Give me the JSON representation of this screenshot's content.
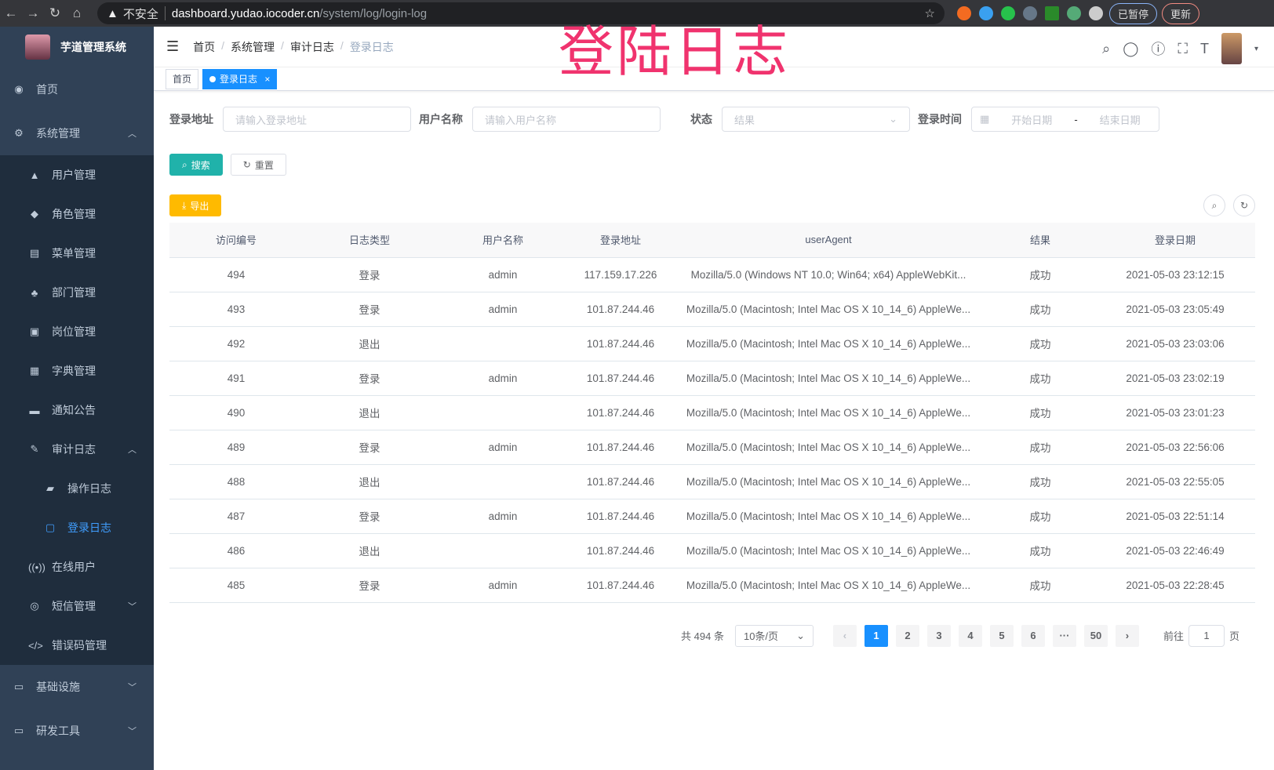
{
  "browser": {
    "security": "不安全",
    "host": "dashboard.yudao.iocoder.cn",
    "path": "/system/log/login-log",
    "paused": "已暂停",
    "update": "更新"
  },
  "overlay_title": "登陆日志",
  "sidebar": {
    "app_name": "芋道管理系统",
    "items": [
      {
        "label": "首页",
        "icon": "dashboard-icon"
      },
      {
        "label": "系统管理",
        "icon": "gear-icon",
        "expanded": true,
        "children": [
          {
            "label": "用户管理",
            "icon": "user-icon"
          },
          {
            "label": "角色管理",
            "icon": "peoples-icon"
          },
          {
            "label": "菜单管理",
            "icon": "tree-table-icon"
          },
          {
            "label": "部门管理",
            "icon": "tree-icon"
          },
          {
            "label": "岗位管理",
            "icon": "post-icon"
          },
          {
            "label": "字典管理",
            "icon": "dict-icon"
          },
          {
            "label": "通知公告",
            "icon": "message-icon"
          },
          {
            "label": "审计日志",
            "icon": "log-icon",
            "expanded": true,
            "children": [
              {
                "label": "操作日志",
                "icon": "form-icon"
              },
              {
                "label": "登录日志",
                "icon": "logininfor-icon",
                "active": true
              }
            ]
          },
          {
            "label": "在线用户",
            "icon": "online-icon"
          },
          {
            "label": "短信管理",
            "icon": "shield-icon"
          },
          {
            "label": "错误码管理",
            "icon": "code-icon"
          }
        ]
      },
      {
        "label": "基础设施",
        "icon": "monitor-icon"
      },
      {
        "label": "研发工具",
        "icon": "tool-icon"
      }
    ]
  },
  "breadcrumb": [
    "首页",
    "系统管理",
    "审计日志",
    "登录日志"
  ],
  "tags": [
    {
      "label": "首页"
    },
    {
      "label": "登录日志",
      "active": true
    }
  ],
  "filters": {
    "address_label": "登录地址",
    "address_placeholder": "请输入登录地址",
    "username_label": "用户名称",
    "username_placeholder": "请输入用户名称",
    "status_label": "状态",
    "status_placeholder": "结果",
    "time_label": "登录时间",
    "start_placeholder": "开始日期",
    "range_sep": "-",
    "end_placeholder": "结束日期"
  },
  "buttons": {
    "search": "搜索",
    "reset": "重置",
    "export": "导出"
  },
  "table": {
    "columns": [
      "访问编号",
      "日志类型",
      "用户名称",
      "登录地址",
      "userAgent",
      "结果",
      "登录日期"
    ],
    "rows": [
      [
        "494",
        "登录",
        "admin",
        "117.159.17.226",
        "Mozilla/5.0 (Windows NT 10.0; Win64; x64) AppleWebKit...",
        "成功",
        "2021-05-03 23:12:15"
      ],
      [
        "493",
        "登录",
        "admin",
        "101.87.244.46",
        "Mozilla/5.0 (Macintosh; Intel Mac OS X 10_14_6) AppleWe...",
        "成功",
        "2021-05-03 23:05:49"
      ],
      [
        "492",
        "退出",
        "",
        "101.87.244.46",
        "Mozilla/5.0 (Macintosh; Intel Mac OS X 10_14_6) AppleWe...",
        "成功",
        "2021-05-03 23:03:06"
      ],
      [
        "491",
        "登录",
        "admin",
        "101.87.244.46",
        "Mozilla/5.0 (Macintosh; Intel Mac OS X 10_14_6) AppleWe...",
        "成功",
        "2021-05-03 23:02:19"
      ],
      [
        "490",
        "退出",
        "",
        "101.87.244.46",
        "Mozilla/5.0 (Macintosh; Intel Mac OS X 10_14_6) AppleWe...",
        "成功",
        "2021-05-03 23:01:23"
      ],
      [
        "489",
        "登录",
        "admin",
        "101.87.244.46",
        "Mozilla/5.0 (Macintosh; Intel Mac OS X 10_14_6) AppleWe...",
        "成功",
        "2021-05-03 22:56:06"
      ],
      [
        "488",
        "退出",
        "",
        "101.87.244.46",
        "Mozilla/5.0 (Macintosh; Intel Mac OS X 10_14_6) AppleWe...",
        "成功",
        "2021-05-03 22:55:05"
      ],
      [
        "487",
        "登录",
        "admin",
        "101.87.244.46",
        "Mozilla/5.0 (Macintosh; Intel Mac OS X 10_14_6) AppleWe...",
        "成功",
        "2021-05-03 22:51:14"
      ],
      [
        "486",
        "退出",
        "",
        "101.87.244.46",
        "Mozilla/5.0 (Macintosh; Intel Mac OS X 10_14_6) AppleWe...",
        "成功",
        "2021-05-03 22:46:49"
      ],
      [
        "485",
        "登录",
        "admin",
        "101.87.244.46",
        "Mozilla/5.0 (Macintosh; Intel Mac OS X 10_14_6) AppleWe...",
        "成功",
        "2021-05-03 22:28:45"
      ]
    ]
  },
  "pagination": {
    "total": "共 494 条",
    "page_size": "10条/页",
    "pages": [
      "1",
      "2",
      "3",
      "4",
      "5",
      "6",
      "···",
      "50"
    ],
    "current": "1",
    "goto_label": "前往",
    "goto_value": "1",
    "goto_suffix": "页"
  },
  "colors": {
    "sidebar_bg": "#304156",
    "submenu_bg": "#1f2d3d",
    "primary": "#1890ff",
    "search_btn": "#20b2aa",
    "export_btn": "#ffba00",
    "overlay_title": "#f0336e"
  }
}
